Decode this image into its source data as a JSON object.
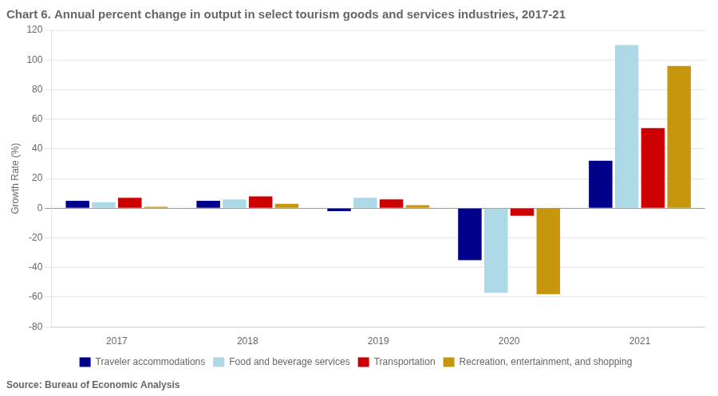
{
  "chart_data": {
    "type": "bar",
    "title": "Chart 6. Annual percent change in output in select tourism goods and services industries, 2017-21",
    "ylabel": "Growth Rate (%)",
    "source": "Source: Bureau of Economic Analysis",
    "categories": [
      "2017",
      "2018",
      "2019",
      "2020",
      "2021"
    ],
    "series": [
      {
        "name": "Traveler accommodations",
        "color": "#00008B",
        "values": [
          5,
          5,
          -2,
          -35,
          32
        ]
      },
      {
        "name": "Food and beverage services",
        "color": "#ADD8E6",
        "values": [
          4,
          6,
          7,
          -57,
          110
        ]
      },
      {
        "name": "Transportation",
        "color": "#CC0000",
        "values": [
          7,
          8,
          6,
          -5,
          54
        ]
      },
      {
        "name": "Recreation, entertainment, and shopping",
        "color": "#C8960C",
        "values": [
          1,
          3,
          2,
          -58,
          96
        ]
      }
    ],
    "ylim": [
      -80,
      120
    ],
    "yticks": [
      -80,
      -60,
      -40,
      -20,
      0,
      20,
      40,
      60,
      80,
      100,
      120
    ],
    "grid": true,
    "legend": "bottom"
  }
}
